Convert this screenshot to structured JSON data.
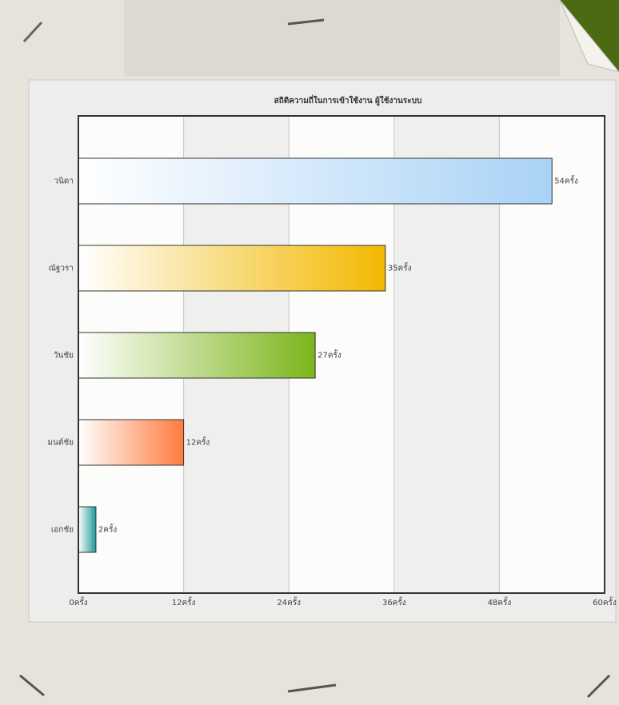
{
  "chart_data": {
    "type": "barh",
    "title": "สถิติความถี่ในการเข้าใช้งาน ผู้ใช้งานระบบ",
    "categories": [
      "วนิดา",
      "ณัฐวรา",
      "วันชัย",
      "มนต์ชัย",
      "เอกชัย"
    ],
    "values": [
      54,
      35,
      27,
      12,
      2
    ],
    "value_labels": [
      "54ครั้ง",
      "35ครั้ง",
      "27ครั้ง",
      "12ครั้ง",
      "2ครั้ง"
    ],
    "colors": [
      "#a9d2f6",
      "#f2b800",
      "#7cb51a",
      "#ff7a3c",
      "#1f9a9a"
    ],
    "xlim": [
      0,
      60
    ],
    "xticks": [
      {
        "value": 0,
        "label": "0ครั้ง"
      },
      {
        "value": 12,
        "label": "12ครั้ง"
      },
      {
        "value": 24,
        "label": "24ครั้ง"
      },
      {
        "value": 36,
        "label": "36ครั้ง"
      },
      {
        "value": 48,
        "label": "48ครั้ง"
      },
      {
        "value": 60,
        "label": "60ครั้ง"
      }
    ],
    "grid": true
  }
}
